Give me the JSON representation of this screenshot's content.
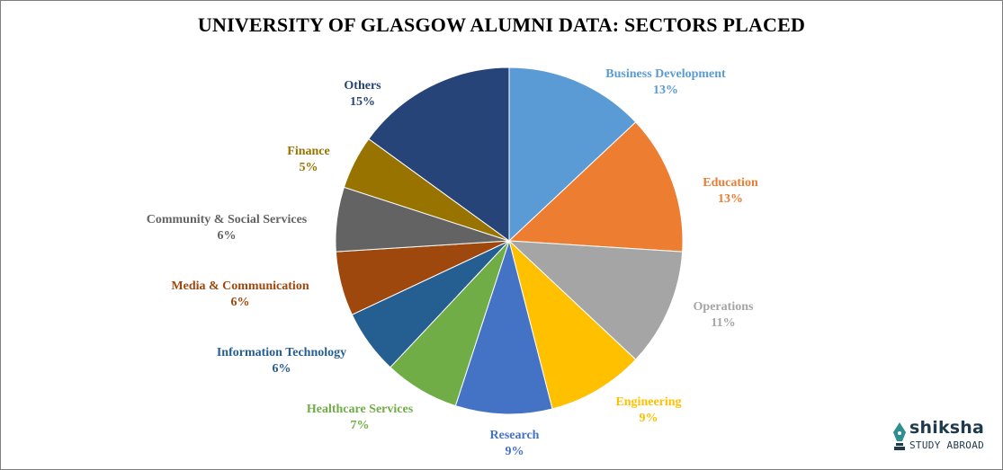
{
  "chart_data": {
    "type": "pie",
    "title": "UNIVERSITY  OF GLASGOW ALUMNI DATA:  SECTORS PLACED",
    "start_angle_deg": 0,
    "direction": "clockwise",
    "legend": "none",
    "slices": [
      {
        "label": "Business Development",
        "value": 13,
        "value_label": "13%",
        "color": "#5b9bd5",
        "label_color": "#5b9bd5"
      },
      {
        "label": "Education",
        "value": 13,
        "value_label": "13%",
        "color": "#ed7d31",
        "label_color": "#ed7d31"
      },
      {
        "label": "Operations",
        "value": 11,
        "value_label": "11%",
        "color": "#a5a5a5",
        "label_color": "#a5a5a5"
      },
      {
        "label": "Engineering",
        "value": 9,
        "value_label": "9%",
        "color": "#ffc000",
        "label_color": "#ffc000"
      },
      {
        "label": "Research",
        "value": 9,
        "value_label": "9%",
        "color": "#4472c4",
        "label_color": "#4472c4"
      },
      {
        "label": "Healthcare Services",
        "value": 7,
        "value_label": "7%",
        "color": "#70ad47",
        "label_color": "#70ad47"
      },
      {
        "label": "Information  Technology",
        "value": 6,
        "value_label": "6%",
        "color": "#255e91",
        "label_color": "#255e91"
      },
      {
        "label": "Media & Communication",
        "value": 6,
        "value_label": "6%",
        "color": "#9e480e",
        "label_color": "#9e480e"
      },
      {
        "label": "Community  & Social Services",
        "value": 6,
        "value_label": "6%",
        "color": "#636363",
        "label_color": "#636363"
      },
      {
        "label": "Finance",
        "value": 5,
        "value_label": "5%",
        "color": "#997300",
        "label_color": "#997300"
      },
      {
        "label": "Others",
        "value": 15,
        "value_label": "15%",
        "color": "#264478",
        "label_color": "#264478"
      }
    ]
  },
  "brand": {
    "name": "shiksha",
    "tagline": "STUDY ABROAD",
    "color": "#1e3a4c",
    "icon": "pen-nib-icon"
  }
}
